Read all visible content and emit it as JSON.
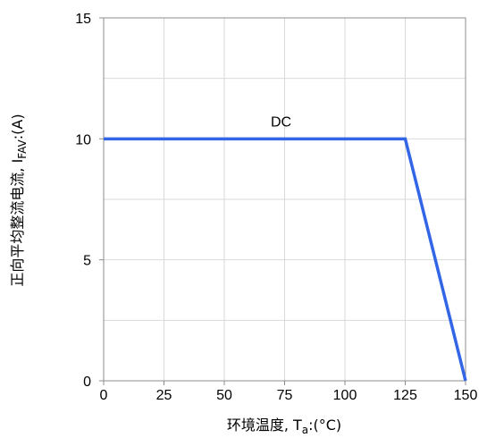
{
  "chart_data": {
    "type": "line",
    "title": "",
    "xlabel_main": "环境温度, T",
    "xlabel_sub": "a",
    "xlabel_tail": ":(°C)",
    "ylabel_main": "正向平均整流电流, I",
    "ylabel_sub": "FAV",
    "ylabel_tail": ":(A)",
    "xlim": [
      0,
      150
    ],
    "ylim": [
      0,
      15
    ],
    "x_ticks": [
      0,
      25,
      50,
      75,
      100,
      125,
      150
    ],
    "y_ticks": [
      0,
      5,
      10,
      15
    ],
    "x_tick_labels": [
      "0",
      "25",
      "50",
      "75",
      "100",
      "125",
      "150"
    ],
    "y_tick_labels": [
      "0",
      "5",
      "10",
      "15"
    ],
    "grid": true,
    "series": [
      {
        "name": "DC",
        "color": "#3366e6",
        "x": [
          0,
          125,
          150
        ],
        "y": [
          10,
          10,
          0
        ]
      }
    ],
    "annotations": [
      {
        "text": "DC",
        "x": 75,
        "y": 10
      }
    ]
  }
}
